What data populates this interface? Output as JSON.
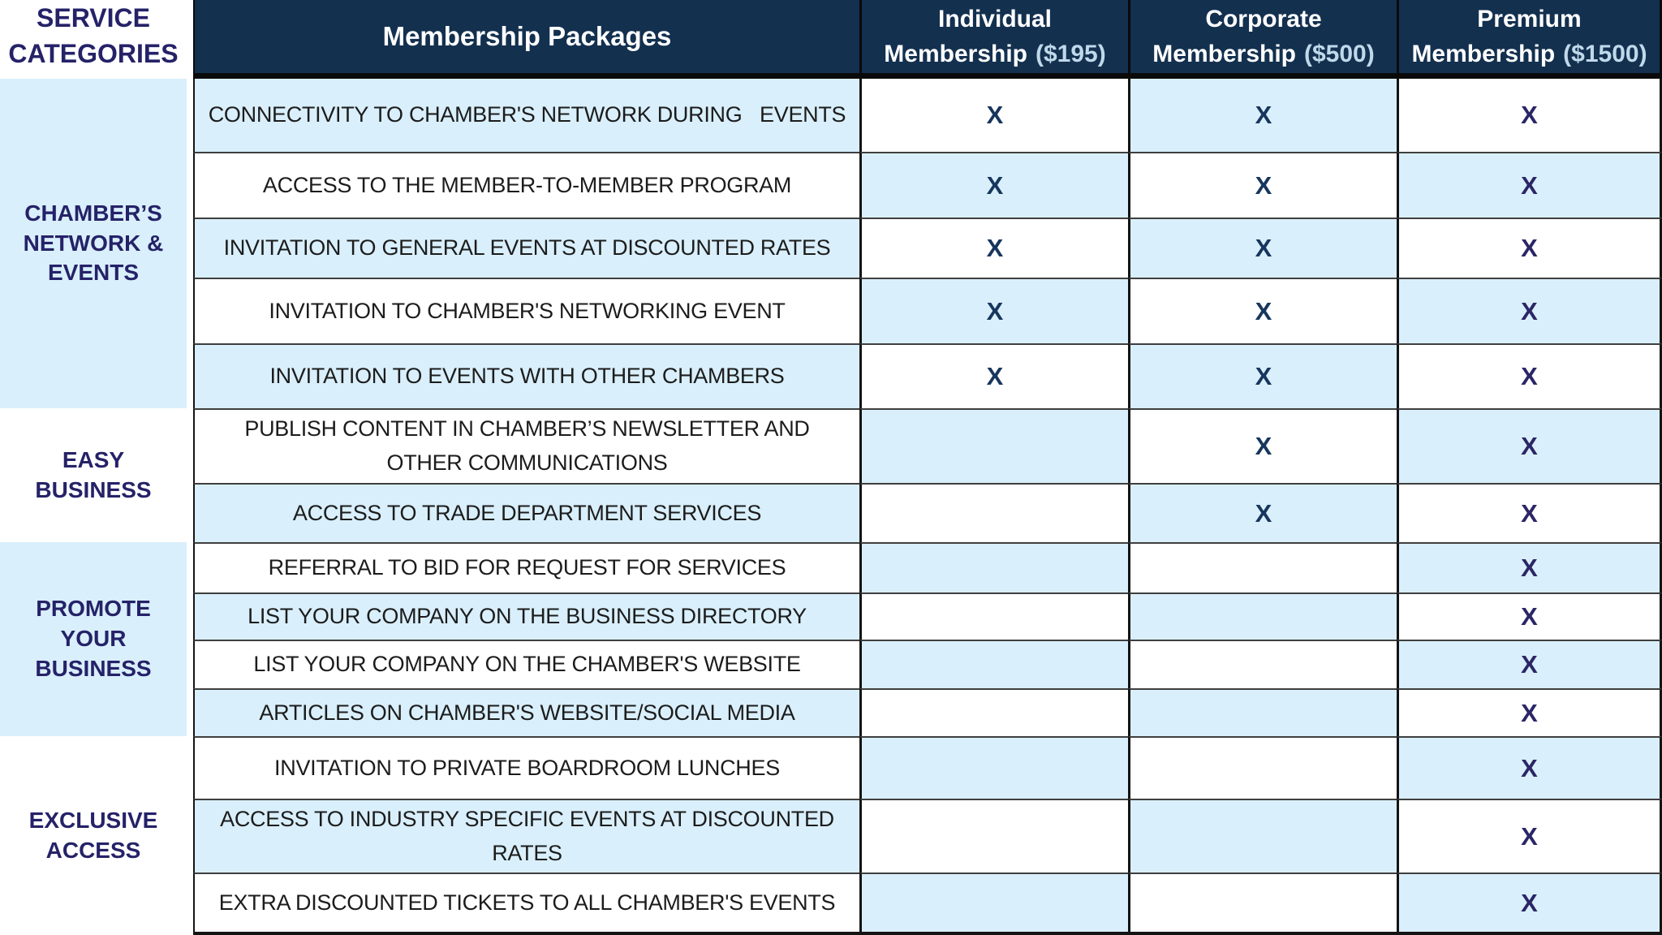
{
  "header": {
    "service_categories": "SERVICE CATEGORIES",
    "membership_packages": "Membership Packages",
    "membership_word": "Membership",
    "plans": [
      {
        "name": "Individual",
        "price": "($195)"
      },
      {
        "name": "Corporate",
        "price": "($500)"
      },
      {
        "name": "Premium",
        "price": "($1500)"
      }
    ]
  },
  "mark": "X",
  "categories": [
    {
      "label": "CHAMBER’S NETWORK & EVENTS",
      "rows": [
        1,
        5
      ]
    },
    {
      "label": "EASY BUSINESS",
      "rows": [
        6,
        7
      ]
    },
    {
      "label": "PROMOTE YOUR BUSINESS",
      "rows": [
        8,
        11
      ]
    },
    {
      "label": "EXCLUSIVE ACCESS",
      "rows": [
        12,
        14
      ]
    }
  ],
  "services": [
    {
      "name": "CONNECTIVITY TO CHAMBER'S NETWORK DURING   EVENTS",
      "individual": true,
      "corporate": true,
      "premium": true
    },
    {
      "name": "ACCESS TO THE MEMBER-TO-MEMBER PROGRAM",
      "individual": true,
      "corporate": true,
      "premium": true
    },
    {
      "name": "INVITATION TO GENERAL EVENTS AT DISCOUNTED RATES",
      "individual": true,
      "corporate": true,
      "premium": true
    },
    {
      "name": "INVITATION TO CHAMBER'S NETWORKING EVENT",
      "individual": true,
      "corporate": true,
      "premium": true
    },
    {
      "name": "INVITATION TO EVENTS WITH OTHER CHAMBERS",
      "individual": true,
      "corporate": true,
      "premium": true
    },
    {
      "name": "PUBLISH CONTENT IN CHAMBER’S NEWSLETTER AND OTHER COMMUNICATIONS",
      "individual": false,
      "corporate": true,
      "premium": true
    },
    {
      "name": "ACCESS TO TRADE DEPARTMENT SERVICES",
      "individual": false,
      "corporate": true,
      "premium": true
    },
    {
      "name": "REFERRAL TO BID FOR REQUEST FOR SERVICES",
      "individual": false,
      "corporate": false,
      "premium": true
    },
    {
      "name": "LIST YOUR COMPANY ON THE BUSINESS DIRECTORY",
      "individual": false,
      "corporate": false,
      "premium": true
    },
    {
      "name": "LIST YOUR COMPANY ON THE CHAMBER'S WEBSITE",
      "individual": false,
      "corporate": false,
      "premium": true
    },
    {
      "name": "ARTICLES ON CHAMBER'S WEBSITE/SOCIAL MEDIA",
      "individual": false,
      "corporate": false,
      "premium": true
    },
    {
      "name": "INVITATION TO PRIVATE BOARDROOM LUNCHES",
      "individual": false,
      "corporate": false,
      "premium": true
    },
    {
      "name": "ACCESS TO INDUSTRY SPECIFIC EVENTS AT DISCOUNTED RATES",
      "individual": false,
      "corporate": false,
      "premium": true
    },
    {
      "name": "EXTRA DISCOUNTED TICKETS TO ALL CHAMBER'S EVENTS",
      "individual": false,
      "corporate": false,
      "premium": true
    }
  ],
  "colors": {
    "header_bg": "#13304f",
    "row_light_blue": "#d9effb",
    "category_text": "#252268",
    "mark_navy": "#17365d",
    "mark_indigo": "#2b2666",
    "price_text": "#bfd9ea"
  }
}
